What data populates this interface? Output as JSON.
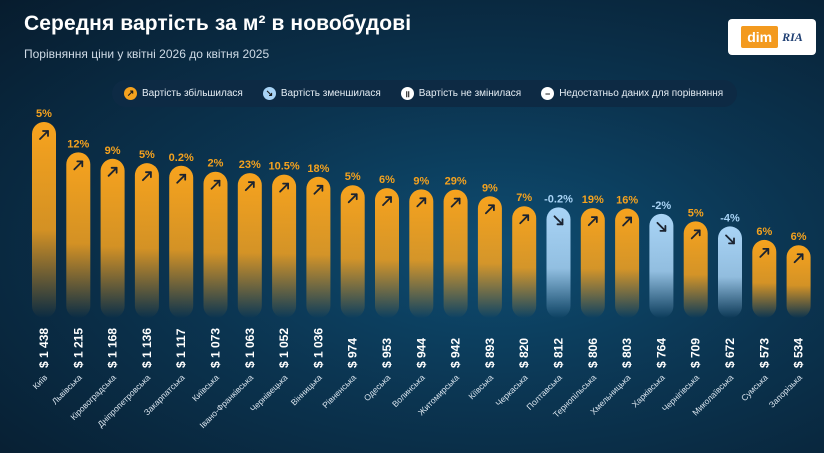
{
  "header": {
    "title": "Середня вартість за м² в новобудові",
    "subtitle": "Порівняння ціни у квітні 2026 до квітня 2025"
  },
  "logo": {
    "dim": "dim",
    "ria": "RIA"
  },
  "legend": {
    "increased": "Вартість збільшилася",
    "decreased": "Вартість зменшилася",
    "unchanged": "Вартість не змінилася",
    "no_data": "Недостатньо даних для порівняння"
  },
  "colors": {
    "up": "#f5a21e",
    "down": "#a8d3f5",
    "background": "#0b3450"
  },
  "chart_data": {
    "type": "bar",
    "categories": [
      "Київ",
      "Львівська",
      "Кіровоградська",
      "Дніпропетровська",
      "Закарпатська",
      "Київська",
      "Івано-Франківська",
      "Чернівецька",
      "Вінницька",
      "Рівненська",
      "Одеська",
      "Волинська",
      "Житомирська",
      "Кіївська",
      "Черкаська",
      "Полтавська",
      "Тернопільська",
      "Хмельницька",
      "Харківська",
      "Чернігівська",
      "Миколаївська",
      "Сумська",
      "Запорізька"
    ],
    "values": [
      1438,
      1215,
      1168,
      1136,
      1117,
      1073,
      1063,
      1052,
      1036,
      974,
      953,
      944,
      942,
      893,
      820,
      812,
      806,
      803,
      764,
      709,
      672,
      573,
      534
    ],
    "value_labels": [
      "$ 1 438",
      "$ 1 215",
      "$ 1 168",
      "$ 1 136",
      "$ 1 117",
      "$ 1 073",
      "$ 1 063",
      "$ 1 052",
      "$ 1 036",
      "$ 974",
      "$ 953",
      "$ 944",
      "$ 942",
      "$ 893",
      "$ 820",
      "$ 812",
      "$ 806",
      "$ 803",
      "$ 764",
      "$ 709",
      "$ 672",
      "$ 573",
      "$ 534"
    ],
    "changes": [
      "5%",
      "12%",
      "9%",
      "5%",
      "0.2%",
      "2%",
      "23%",
      "10.5%",
      "18%",
      "5%",
      "6%",
      "9%",
      "29%",
      "9%",
      "7%",
      "-0.2%",
      "19%",
      "16%",
      "-2%",
      "5%",
      "-4%",
      "6%",
      "6%"
    ],
    "directions": [
      "up",
      "up",
      "up",
      "up",
      "up",
      "up",
      "up",
      "up",
      "up",
      "up",
      "up",
      "up",
      "up",
      "up",
      "up",
      "down",
      "up",
      "up",
      "down",
      "up",
      "down",
      "up",
      "up"
    ]
  }
}
